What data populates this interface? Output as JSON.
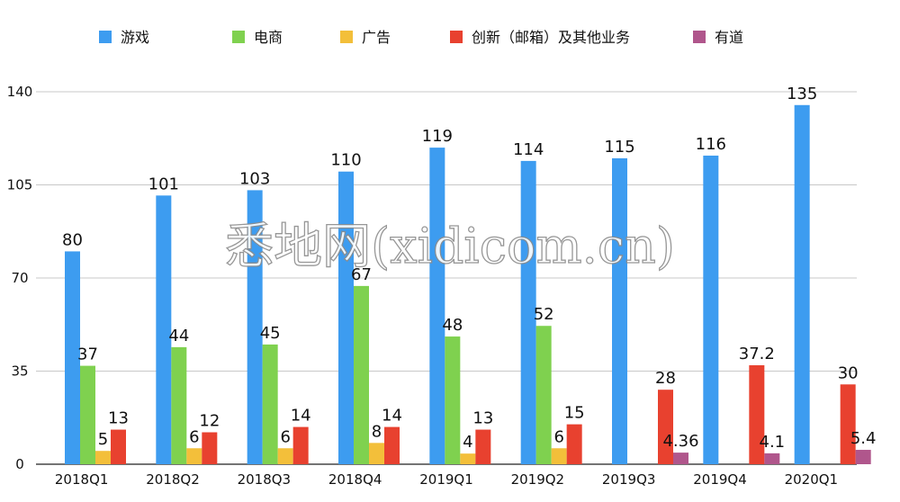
{
  "watermark": "悉地网(xidicom.cn)",
  "chart_data": {
    "type": "bar",
    "categories": [
      "2018Q1",
      "2018Q2",
      "2018Q3",
      "2018Q4",
      "2019Q1",
      "2019Q2",
      "2019Q3",
      "2019Q4",
      "2020Q1"
    ],
    "ylim": [
      0,
      140
    ],
    "yticks": [
      0,
      35,
      70,
      105,
      140
    ],
    "grid": true,
    "legend_position": "top",
    "series": [
      {
        "name": "游戏",
        "color": "#3d9cf0",
        "values": [
          80,
          101,
          103,
          110,
          119,
          114,
          115,
          116,
          135
        ],
        "labels": [
          "80",
          "101",
          "103",
          "110",
          "119",
          "114",
          "115",
          "116",
          "135"
        ]
      },
      {
        "name": "电商",
        "color": "#7fd14f",
        "values": [
          37,
          44,
          45,
          67,
          48,
          52,
          null,
          null,
          null
        ],
        "labels": [
          "37",
          "44",
          "45",
          "67",
          "48",
          "52",
          "",
          "",
          ""
        ]
      },
      {
        "name": "广告",
        "color": "#f3bf3a",
        "values": [
          5,
          6,
          6,
          8,
          4,
          6,
          null,
          null,
          null
        ],
        "labels": [
          "5",
          "6",
          "6",
          "8",
          "4",
          "6",
          "",
          "",
          ""
        ]
      },
      {
        "name": "创新（邮箱）及其他业务",
        "color": "#e8412f",
        "values": [
          13,
          12,
          14,
          14,
          13,
          15,
          28,
          37.2,
          30
        ],
        "labels": [
          "13",
          "12",
          "14",
          "14",
          "13",
          "15",
          "28",
          "37.2",
          "30"
        ]
      },
      {
        "name": "有道",
        "color": "#b0568c",
        "values": [
          null,
          null,
          null,
          null,
          null,
          null,
          4.36,
          4.1,
          5.4
        ],
        "labels": [
          "",
          "",
          "",
          "",
          "",
          "",
          "4.36",
          "4.1",
          "5.4"
        ]
      }
    ]
  }
}
